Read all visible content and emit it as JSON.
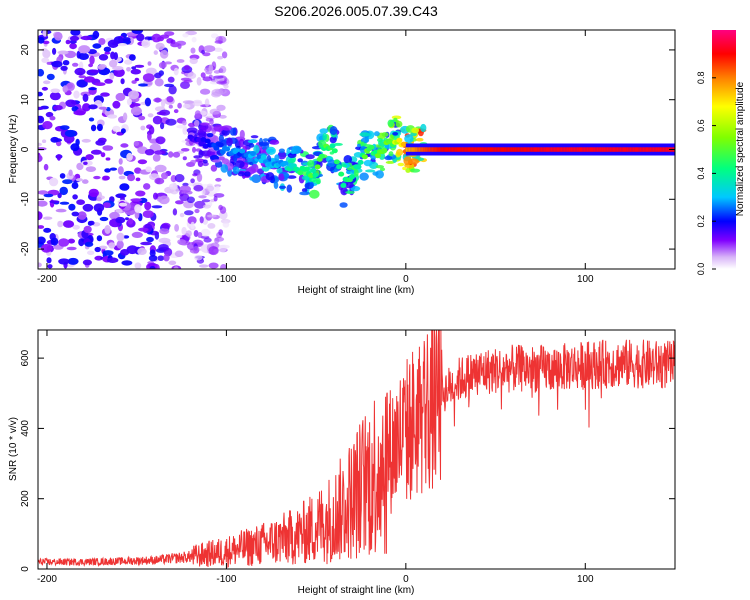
{
  "title": "S206.2026.005.07.39.C43",
  "chart_data": [
    {
      "type": "heatmap",
      "xlabel": "Height of straight line (km)",
      "ylabel": "Frequency (Hz)",
      "xlim": [
        -205,
        150
      ],
      "ylim": [
        -24,
        24
      ],
      "xticks": [
        -200,
        -100,
        0,
        100
      ],
      "yticks": [
        -20,
        -10,
        0,
        10,
        20
      ],
      "grid": false,
      "colorbar": {
        "label": "Normalized spectral amplitude",
        "range": [
          0,
          1
        ],
        "ticks": [
          0.0,
          0.2,
          0.4,
          0.6,
          0.8
        ],
        "tick_labels": [
          "0.0",
          "0.2",
          "0.4",
          "0.6",
          "0.8"
        ],
        "colors": [
          "#ffffff",
          "#d8b4f8",
          "#8000ff",
          "#0000ff",
          "#00c8ff",
          "#00ff80",
          "#80ff00",
          "#ffff00",
          "#ff8000",
          "#ff0000",
          "#ff0080"
        ]
      },
      "ridge": {
        "description": "spectral ridge (frequency in Hz vs height in km)",
        "x": [
          -120,
          -110,
          -100,
          -90,
          -80,
          -70,
          -60,
          -50,
          -45,
          -40,
          -35,
          -30,
          -25,
          -20,
          -15,
          -10,
          -5,
          0,
          5,
          10,
          20,
          40,
          60,
          80,
          100,
          120,
          150
        ],
        "y": [
          2,
          1,
          0,
          -1,
          -2,
          -3,
          -4,
          -5,
          1,
          0,
          -7,
          -5,
          -2,
          0,
          -1,
          1,
          2,
          0,
          0,
          0,
          0,
          0,
          0,
          0,
          0,
          0,
          0
        ],
        "amplitude": [
          0.15,
          0.2,
          0.25,
          0.25,
          0.3,
          0.3,
          0.4,
          0.45,
          0.45,
          0.4,
          0.4,
          0.4,
          0.45,
          0.45,
          0.5,
          0.5,
          0.6,
          0.75,
          0.8,
          0.85,
          0.9,
          0.9,
          0.9,
          0.92,
          0.92,
          0.92,
          0.92
        ]
      },
      "noise_region": {
        "x_range": [
          -205,
          -120
        ],
        "y_range": [
          -24,
          24
        ],
        "amplitude_range": [
          0.02,
          0.22
        ]
      }
    },
    {
      "type": "line",
      "xlabel": "Height of straight line (km)",
      "ylabel": "SNR (10 * v/v)",
      "xlim": [
        -205,
        150
      ],
      "ylim": [
        0,
        680
      ],
      "xticks": [
        -200,
        -100,
        0,
        100
      ],
      "yticks": [
        0,
        200,
        400,
        600
      ],
      "grid": false,
      "series": [
        {
          "name": "SNR",
          "color": "#ee3333",
          "x": [
            -205,
            -180,
            -160,
            -140,
            -120,
            -100,
            -80,
            -60,
            -50,
            -40,
            -30,
            -20,
            -10,
            0,
            10,
            20,
            30,
            40,
            60,
            80,
            100,
            120,
            150
          ],
          "y": [
            20,
            20,
            22,
            25,
            35,
            50,
            70,
            95,
            120,
            150,
            200,
            260,
            330,
            390,
            450,
            500,
            540,
            560,
            570,
            570,
            580,
            585,
            580
          ]
        }
      ]
    }
  ]
}
